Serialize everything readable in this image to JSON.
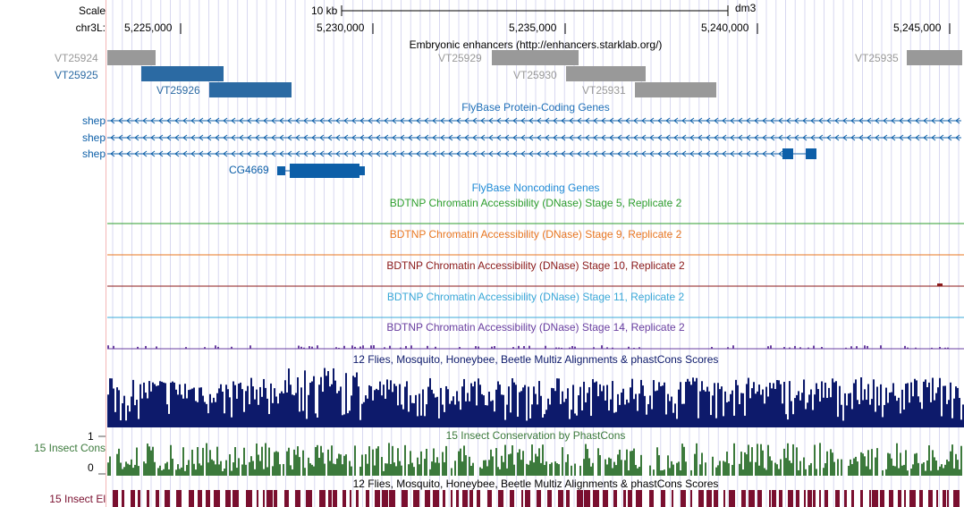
{
  "colors": {
    "enhancer_gray": "#999999",
    "enhancer_blue": "#2b6aa3",
    "gene_blue": "#0d5fa8",
    "noncoding_blue": "#1e8ad6",
    "stage5": "#2e9e2e",
    "stage9": "#e87722",
    "stage10": "#8b1a1a",
    "stage11": "#3aa8d8",
    "stage14": "#6a3fa0",
    "multiz": "#0d1a6b",
    "phastcons": "#3c7a3c",
    "elements": "#7a0f2f",
    "guide": "#d8d8f0"
  },
  "ruler": {
    "scale_label": "Scale",
    "chrom_label": "chr3L:",
    "scale_bar_text": "10 kb",
    "assembly": "dm3",
    "positions": [
      "5,225,000",
      "5,230,000",
      "5,235,000",
      "5,240,000",
      "5,245,000"
    ]
  },
  "tracks": {
    "enhancers": {
      "title": "Embryonic enhancers (http://enhancers.starklab.org/)",
      "items": [
        {
          "name": "VT25924",
          "style": "gray"
        },
        {
          "name": "VT25925",
          "style": "blue"
        },
        {
          "name": "VT25926",
          "style": "blue"
        },
        {
          "name": "VT25929",
          "style": "gray"
        },
        {
          "name": "VT25930",
          "style": "gray"
        },
        {
          "name": "VT25931",
          "style": "gray"
        },
        {
          "name": "VT25935",
          "style": "gray"
        }
      ]
    },
    "protein_coding": {
      "title": "FlyBase Protein-Coding Genes",
      "genes": [
        "shep",
        "shep",
        "shep",
        "CG4669"
      ]
    },
    "noncoding": {
      "title": "FlyBase Noncoding Genes"
    },
    "dnase": [
      {
        "title": "BDTNP Chromatin Accessibility (DNase) Stage 5, Replicate 2",
        "color": "#2e9e2e"
      },
      {
        "title": "BDTNP Chromatin Accessibility (DNase) Stage 9, Replicate 2",
        "color": "#e87722"
      },
      {
        "title": "BDTNP Chromatin Accessibility (DNase) Stage 10, Replicate 2",
        "color": "#8b1a1a"
      },
      {
        "title": "BDTNP Chromatin Accessibility (DNase) Stage 11, Replicate 2",
        "color": "#3aa8d8"
      },
      {
        "title": "BDTNP Chromatin Accessibility (DNase) Stage 14, Replicate 2",
        "color": "#6a3fa0"
      }
    ],
    "multiz": {
      "title": "12 Flies, Mosquito, Honeybee, Beetle Multiz Alignments & phastCons Scores"
    },
    "phastcons": {
      "title": "15 Insect Conservation by PhastCons",
      "left_label": "15 Insect Cons",
      "y_max": "1",
      "y_min": "0"
    },
    "elements": {
      "title": "12 Flies, Mosquito, Honeybee, Beetle Multiz Alignments & phastCons Scores",
      "left_label": "15 Insect El"
    }
  }
}
